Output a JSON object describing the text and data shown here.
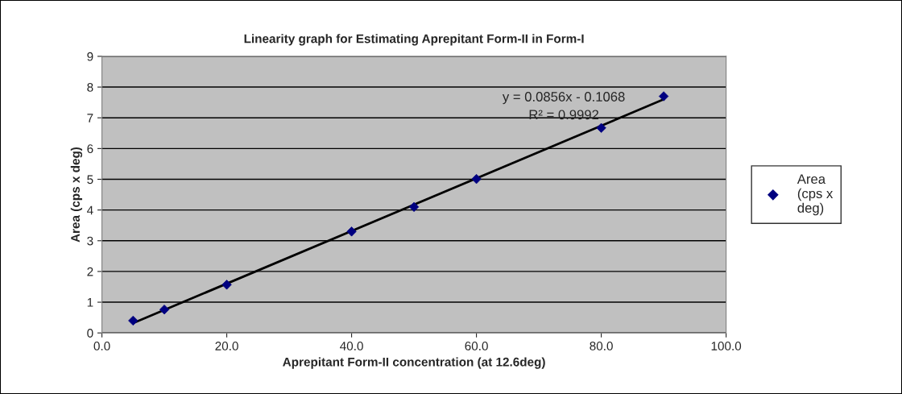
{
  "chart_data": {
    "type": "scatter",
    "title": "Linearity graph for Estimating Aprepitant Form-II in Form-I",
    "xlabel": "Aprepitant Form-II concentration (at 12.6deg)",
    "ylabel": "Area (cps x deg)",
    "x": [
      5,
      10,
      20,
      40,
      50,
      60,
      80,
      90
    ],
    "series": [
      {
        "name": "Area\n(cps x\ndeg)",
        "color": "#000080",
        "values": [
          0.4,
          0.76,
          1.57,
          3.3,
          4.1,
          5.01,
          6.67,
          7.7
        ],
        "marker": "diamond"
      },
      {
        "type": "line",
        "color": "#000000",
        "x": [
          5,
          90
        ],
        "values": [
          0.32,
          7.6
        ],
        "marker": "none"
      }
    ],
    "xlim": [
      0,
      100
    ],
    "xticks": [
      {
        "value": 0,
        "label": "0.0"
      },
      {
        "value": 20,
        "label": "20.0"
      },
      {
        "value": 40,
        "label": "40.0"
      },
      {
        "value": 60,
        "label": "60.0"
      },
      {
        "value": 80,
        "label": "80.0"
      },
      {
        "value": 100,
        "label": "100.0"
      }
    ],
    "ylim": [
      0,
      9
    ],
    "yticks": [
      0,
      1,
      2,
      3,
      4,
      5,
      6,
      7,
      8,
      9
    ],
    "grid": "y",
    "legend": "right",
    "annotations": [
      "y = 0.0856x - 0.1068",
      "R² = 0.9992"
    ]
  }
}
